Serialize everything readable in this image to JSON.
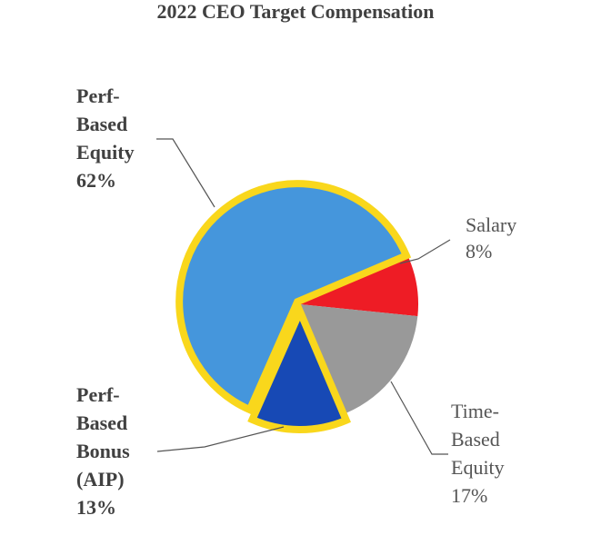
{
  "chart_data": {
    "type": "pie",
    "title": "2022 CEO Target Compensation",
    "slices": [
      {
        "name": "Salary",
        "label_lines": [
          "Salary",
          "8%"
        ],
        "value": 8,
        "color": "#EE1C25",
        "highlight": false,
        "bold_label": false
      },
      {
        "name": "Time-Based Equity",
        "label_lines": [
          "Time-",
          "Based",
          "Equity",
          "17%"
        ],
        "value": 17,
        "color": "#999999",
        "highlight": false,
        "bold_label": false
      },
      {
        "name": "Perf-Based Bonus (AIP)",
        "label_lines": [
          "Perf-",
          "Based",
          "Bonus",
          "(AIP)",
          "13%"
        ],
        "value": 13,
        "color": "#1749B5",
        "highlight": true,
        "bold_label": true
      },
      {
        "name": "Perf-Based Equity",
        "label_lines": [
          "Perf-",
          "Based",
          "Equity",
          "62%"
        ],
        "value": 62,
        "color": "#4596DC",
        "highlight": true,
        "bold_label": true
      }
    ],
    "highlight_color": "#F9D71C",
    "legend": "none"
  }
}
